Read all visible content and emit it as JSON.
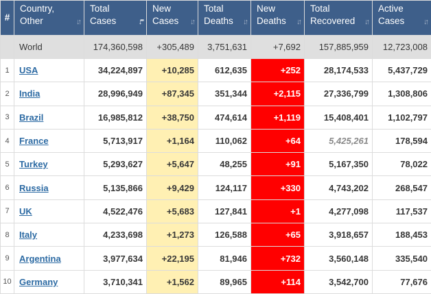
{
  "headers": {
    "idx": "#",
    "country": [
      "Country,",
      "Other"
    ],
    "total_cases": [
      "Total",
      "Cases"
    ],
    "new_cases": [
      "New",
      "Cases"
    ],
    "total_deaths": [
      "Total",
      "Deaths"
    ],
    "new_deaths": [
      "New",
      "Deaths"
    ],
    "total_recovered": [
      "Total",
      "Recovered"
    ],
    "active_cases": [
      "Active",
      "Cases"
    ],
    "sort_icon": "sort-arrows-icon"
  },
  "world": {
    "label": "World",
    "total_cases": "174,360,598",
    "new_cases": "+305,489",
    "total_deaths": "3,751,631",
    "new_deaths": "+7,692",
    "total_recovered": "157,885,959",
    "active_cases": "12,723,008"
  },
  "rows": [
    {
      "idx": "1",
      "country": "USA",
      "total_cases": "34,224,897",
      "new_cases": "+10,285",
      "total_deaths": "612,635",
      "new_deaths": "+252",
      "total_recovered": "28,174,533",
      "active_cases": "5,437,729"
    },
    {
      "idx": "2",
      "country": "India",
      "total_cases": "28,996,949",
      "new_cases": "+87,345",
      "total_deaths": "351,344",
      "new_deaths": "+2,115",
      "total_recovered": "27,336,799",
      "active_cases": "1,308,806"
    },
    {
      "idx": "3",
      "country": "Brazil",
      "total_cases": "16,985,812",
      "new_cases": "+38,750",
      "total_deaths": "474,614",
      "new_deaths": "+1,119",
      "total_recovered": "15,408,401",
      "active_cases": "1,102,797"
    },
    {
      "idx": "4",
      "country": "France",
      "total_cases": "5,713,917",
      "new_cases": "+1,164",
      "total_deaths": "110,062",
      "new_deaths": "+64",
      "total_recovered": "5,425,261",
      "active_cases": "178,594"
    },
    {
      "idx": "5",
      "country": "Turkey",
      "total_cases": "5,293,627",
      "new_cases": "+5,647",
      "total_deaths": "48,255",
      "new_deaths": "+91",
      "total_recovered": "5,167,350",
      "active_cases": "78,022"
    },
    {
      "idx": "6",
      "country": "Russia",
      "total_cases": "5,135,866",
      "new_cases": "+9,429",
      "total_deaths": "124,117",
      "new_deaths": "+330",
      "total_recovered": "4,743,202",
      "active_cases": "268,547"
    },
    {
      "idx": "7",
      "country": "UK",
      "total_cases": "4,522,476",
      "new_cases": "+5,683",
      "total_deaths": "127,841",
      "new_deaths": "+1",
      "total_recovered": "4,277,098",
      "active_cases": "117,537"
    },
    {
      "idx": "8",
      "country": "Italy",
      "total_cases": "4,233,698",
      "new_cases": "+1,273",
      "total_deaths": "126,588",
      "new_deaths": "+65",
      "total_recovered": "3,918,657",
      "active_cases": "188,453"
    },
    {
      "idx": "9",
      "country": "Argentina",
      "total_cases": "3,977,634",
      "new_cases": "+22,195",
      "total_deaths": "81,946",
      "new_deaths": "+732",
      "total_recovered": "3,560,148",
      "active_cases": "335,540"
    },
    {
      "idx": "10",
      "country": "Germany",
      "total_cases": "3,710,341",
      "new_cases": "+1,562",
      "total_deaths": "89,965",
      "new_deaths": "+114",
      "total_recovered": "3,542,700",
      "active_cases": "77,676"
    }
  ],
  "colors": {
    "header_bg": "#3e5f8a",
    "new_cases_bg": "#fff0b3",
    "new_deaths_bg": "#ff0000",
    "link": "#2c6aa3",
    "world_bg": "#dfdfdf"
  }
}
